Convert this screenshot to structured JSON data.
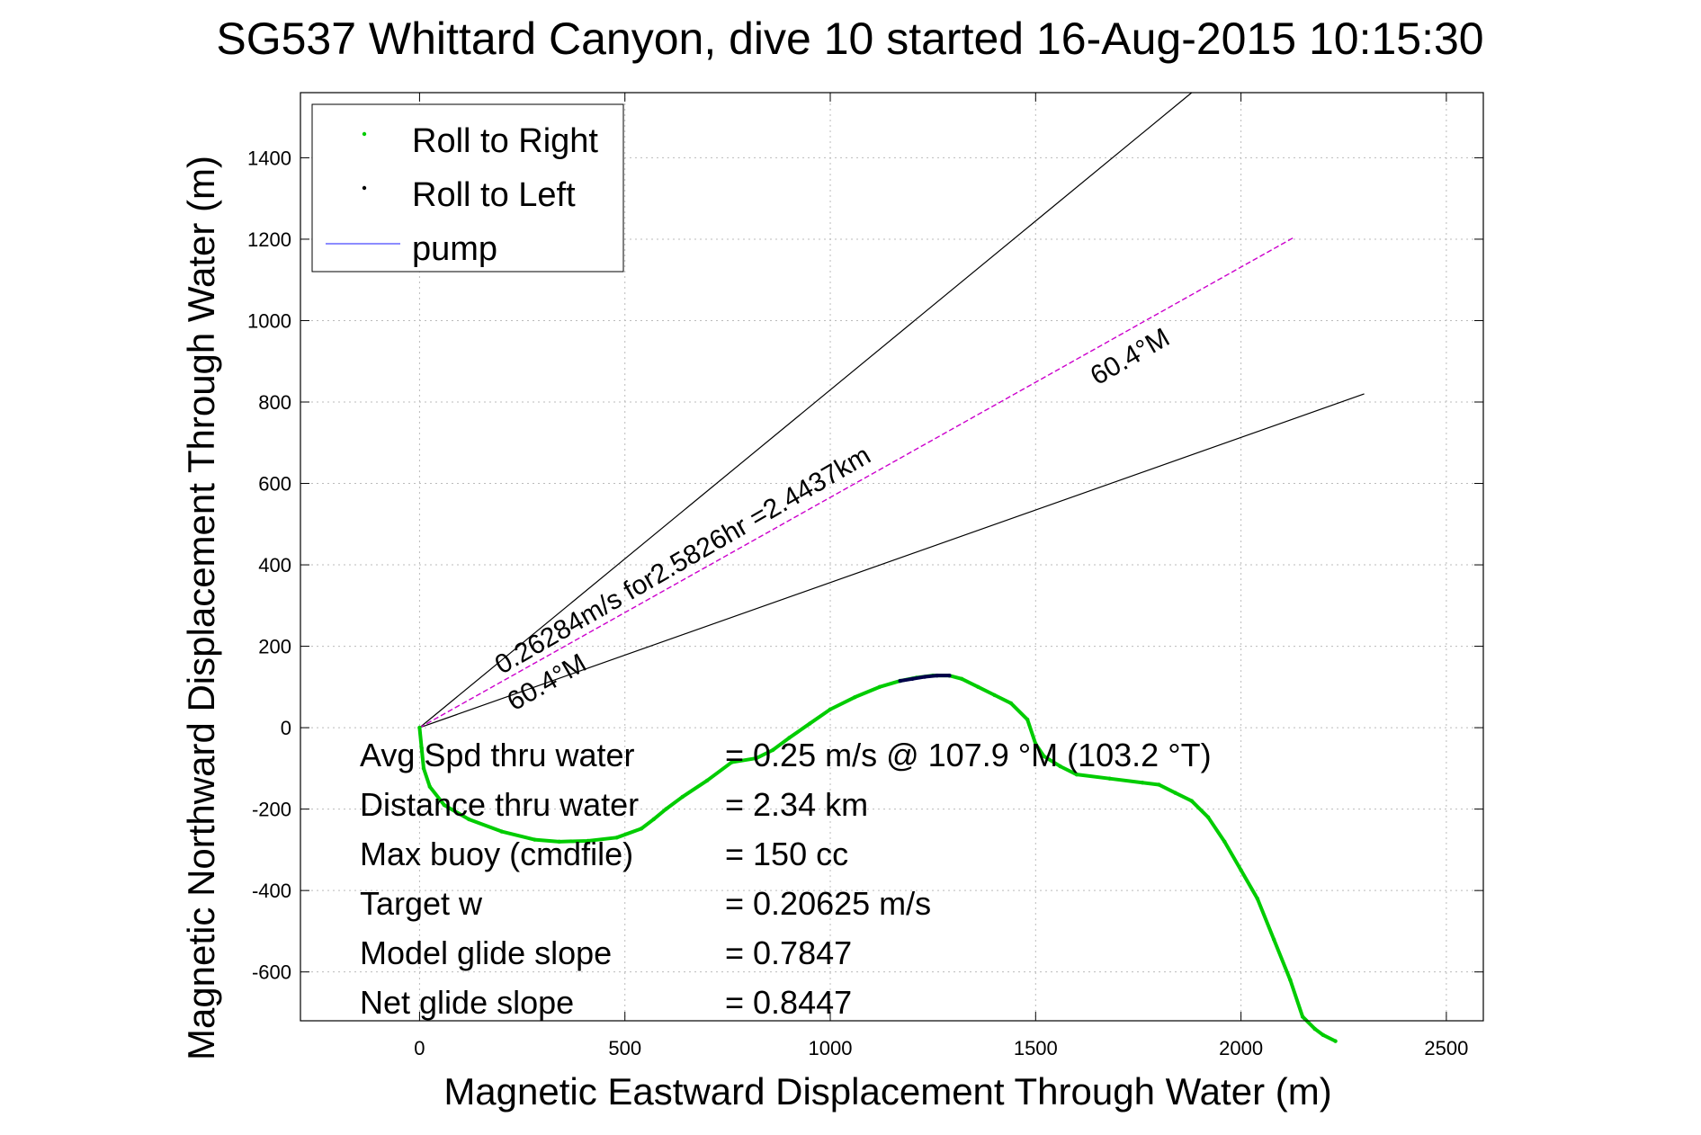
{
  "chart_data": {
    "type": "line",
    "title": "SG537 Whittard Canyon, dive 10 started 16-Aug-2015 10:15:30",
    "xlabel": "Magnetic Eastward Displacement Through Water (m)",
    "ylabel": "Magnetic Northward Displacement Through Water (m)",
    "xlim": [
      -290,
      2590
    ],
    "ylim": [
      -720,
      1560
    ],
    "xticks": [
      0,
      500,
      1000,
      1500,
      2000,
      2500
    ],
    "yticks": [
      -600,
      -400,
      -200,
      0,
      200,
      400,
      600,
      800,
      1000,
      1200,
      1400
    ],
    "grid": true,
    "legend": {
      "placement": "top-left",
      "entries": [
        {
          "label": "Roll to Right",
          "marker": "dot",
          "color": "#00cc00"
        },
        {
          "label": "Roll to Left",
          "marker": "dot",
          "color": "#000000"
        },
        {
          "label": "pump",
          "marker": "line",
          "color": "#6666ff"
        }
      ]
    },
    "colors": {
      "track": "#00cc00",
      "roll_left": "#00004a",
      "heading": "#cc00cc",
      "cone": "#000000",
      "grid": "#bbbbbb"
    },
    "series": [
      {
        "name": "Roll to Right",
        "x": [
          0,
          5,
          10,
          25,
          60,
          120,
          200,
          280,
          340,
          410,
          480,
          540,
          570,
          600,
          640,
          700,
          760,
          820,
          860,
          900,
          950,
          1000,
          1060,
          1120,
          1170,
          1210,
          1250,
          1290,
          1320,
          1360,
          1400,
          1440,
          1480,
          1500,
          1520,
          1560,
          1600,
          1680,
          1760,
          1800,
          1840,
          1880,
          1920,
          1960,
          2000,
          2040,
          2080,
          2120,
          2150,
          2180,
          2200,
          2230
        ],
        "y": [
          0,
          -50,
          -100,
          -145,
          -190,
          -225,
          -255,
          -275,
          -280,
          -278,
          -270,
          -248,
          -225,
          -200,
          -170,
          -130,
          -85,
          -75,
          -55,
          -25,
          10,
          45,
          75,
          100,
          115,
          123,
          128,
          128,
          120,
          100,
          80,
          60,
          20,
          -40,
          -70,
          -95,
          -115,
          -125,
          -135,
          -140,
          -160,
          -180,
          -220,
          -280,
          -350,
          -420,
          -520,
          -620,
          -710,
          -740,
          -755,
          -770
        ]
      },
      {
        "name": "Roll to Left",
        "x": [
          1170,
          1200,
          1230,
          1260,
          1290
        ],
        "y": [
          115,
          120,
          125,
          128,
          128
        ]
      }
    ],
    "guide_lines": {
      "heading_deg": 60.4,
      "heading_end": [
        2130,
        1205
      ],
      "cone_upper_end": [
        1880,
        1560
      ],
      "cone_lower_end": [
        2300,
        820
      ]
    },
    "annotations": [
      {
        "text": "0.26284m/s for2.5826hr =2.4437km",
        "x": 200,
        "y": 130,
        "rotate_deg": -30
      },
      {
        "text": "60.4°M",
        "x": 230,
        "y": 40,
        "rotate_deg": -30
      },
      {
        "text": "60.4°M",
        "x": 1650,
        "y": 840,
        "rotate_deg": -30
      }
    ],
    "stats": [
      {
        "label": "Avg Spd thru water",
        "value": "=  0.25 m/s @ 107.9 °M (103.2 °T)"
      },
      {
        "label": "Distance thru water",
        "value": "=  2.34 km"
      },
      {
        "label": "Max buoy (cmdfile)",
        "value": "= 150 cc"
      },
      {
        "label": "Target w",
        "value": "= 0.20625 m/s"
      },
      {
        "label": "Model glide slope",
        "value": "= 0.7847"
      },
      {
        "label": "Net glide slope",
        "value": "= 0.8447"
      }
    ]
  }
}
